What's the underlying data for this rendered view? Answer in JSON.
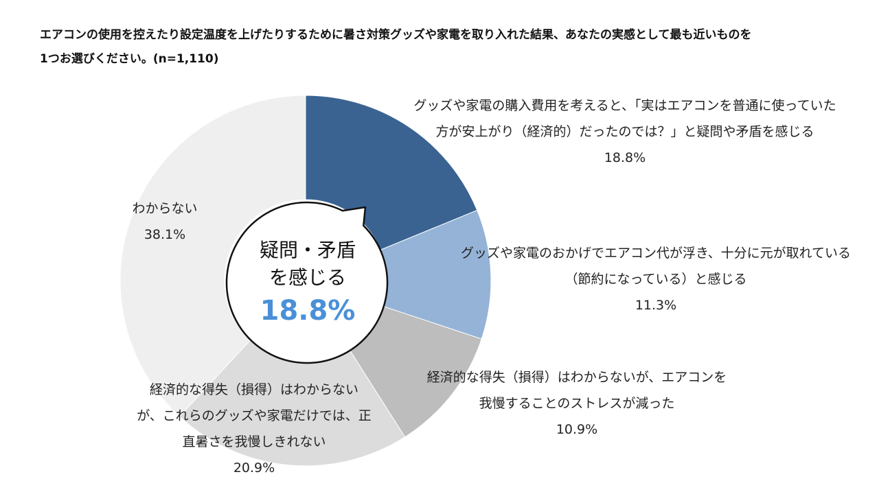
{
  "title": "エアコンの使用を控えたり設定温度を上げたりするために暑さ対策グッズや家電を取り入れた結果、あなたの実感として最も近いものを1つお選びください。(n=1,110)",
  "chart_data": {
    "type": "pie",
    "donut": true,
    "slices": [
      {
        "label_lines": [
          "グッズや家電の購入費用を考えると、「実はエアコンを普通に使っていた",
          "方が安上がり（経済的）だったのでは？」と疑問や矛盾を感じる"
        ],
        "value": 18.8,
        "value_label": "18.8%",
        "color": "#3a6391"
      },
      {
        "label_lines": [
          "グッズや家電のおかげでエアコン代が浮き、十分に元が取れている",
          "（節約になっている）と感じる"
        ],
        "value": 11.3,
        "value_label": "11.3%",
        "color": "#94b3d7"
      },
      {
        "label_lines": [
          "経済的な得失（損得）はわからないが、エアコンを",
          "我慢することのストレスが減った"
        ],
        "value": 10.9,
        "value_label": "10.9%",
        "color": "#bdbdbd"
      },
      {
        "label_lines": [
          "経済的な得失（損得）はわからない",
          "が、これらのグッズや家電だけでは、正",
          "直暑さを我慢しきれない"
        ],
        "value": 20.9,
        "value_label": "20.9%",
        "color": "#dcdcdc"
      },
      {
        "label_lines": [
          "わからない"
        ],
        "value": 38.1,
        "value_label": "38.1%",
        "color": "#efefef"
      }
    ],
    "callout": {
      "lines": [
        "疑問・矛盾",
        "を感じる"
      ],
      "value": "18.8%",
      "value_color": "#4a90d9"
    }
  }
}
